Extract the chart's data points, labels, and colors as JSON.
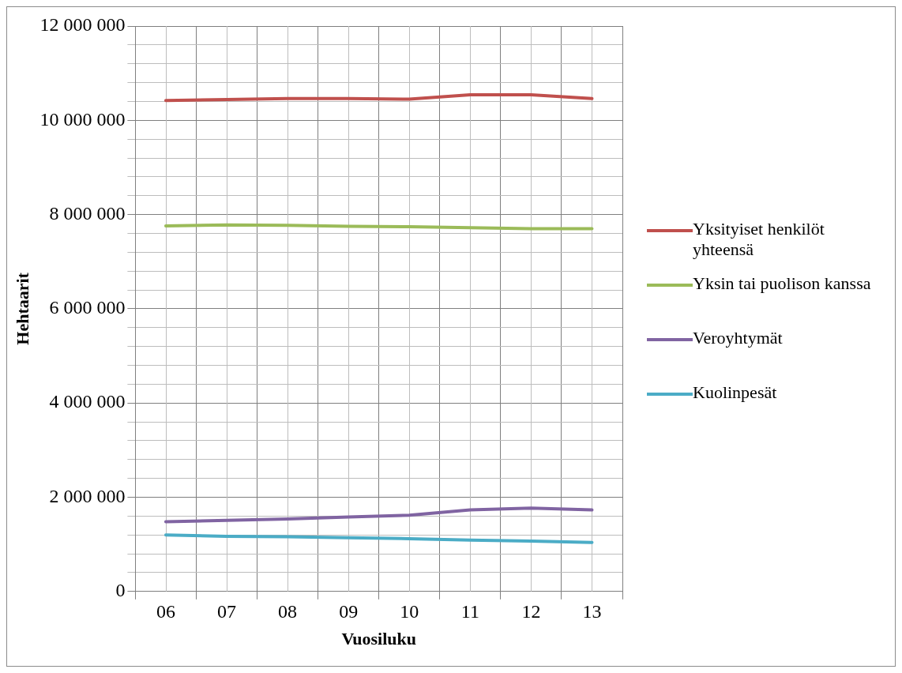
{
  "chart_data": {
    "type": "line",
    "xlabel": "Vuosiluku",
    "ylabel": "Hehtaarit",
    "categories": [
      "06",
      "07",
      "08",
      "09",
      "10",
      "11",
      "12",
      "13"
    ],
    "series": [
      {
        "name": "Yksityiset henkilöt yhteensä",
        "color": "#c0504d",
        "values": [
          10420000,
          10440000,
          10460000,
          10460000,
          10450000,
          10540000,
          10540000,
          10460000
        ]
      },
      {
        "name": "Yksin tai puolison kanssa",
        "color": "#9bbb59",
        "values": [
          7760000,
          7780000,
          7770000,
          7750000,
          7740000,
          7720000,
          7700000,
          7700000
        ]
      },
      {
        "name": "Veroyhtymät",
        "color": "#8064a2",
        "values": [
          1480000,
          1510000,
          1540000,
          1580000,
          1620000,
          1730000,
          1770000,
          1730000
        ]
      },
      {
        "name": "Kuolinpesät",
        "color": "#4bacc6",
        "values": [
          1200000,
          1170000,
          1160000,
          1140000,
          1120000,
          1090000,
          1070000,
          1040000
        ]
      }
    ],
    "ylim": [
      0,
      12000000
    ],
    "yticks": [
      0,
      {
        "value": 400000,
        "label": null
      },
      {
        "value": 800000,
        "label": null
      },
      {
        "value": 1200000,
        "label": null
      },
      {
        "value": 1600000,
        "label": null
      },
      {
        "value": 2000000,
        "label": "2 000 000"
      },
      {
        "value": 2400000,
        "label": null
      },
      {
        "value": 2800000,
        "label": null
      },
      {
        "value": 3200000,
        "label": null
      },
      {
        "value": 3600000,
        "label": null
      },
      {
        "value": 4000000,
        "label": "4 000 000"
      },
      {
        "value": 4400000,
        "label": null
      },
      {
        "value": 4800000,
        "label": null
      },
      {
        "value": 5200000,
        "label": null
      },
      {
        "value": 5600000,
        "label": null
      },
      {
        "value": 6000000,
        "label": "6 000 000"
      },
      {
        "value": 6400000,
        "label": null
      },
      {
        "value": 6800000,
        "label": null
      },
      {
        "value": 7200000,
        "label": null
      },
      {
        "value": 7600000,
        "label": null
      },
      {
        "value": 8000000,
        "label": "8 000 000"
      },
      {
        "value": 8400000,
        "label": null
      },
      {
        "value": 8800000,
        "label": null
      },
      {
        "value": 9200000,
        "label": null
      },
      {
        "value": 9600000,
        "label": null
      },
      {
        "value": 10000000,
        "label": "10 000 000"
      },
      {
        "value": 10400000,
        "label": null
      },
      {
        "value": 10800000,
        "label": null
      },
      {
        "value": 11200000,
        "label": null
      },
      {
        "value": 11600000,
        "label": null
      },
      {
        "value": 12000000,
        "label": "12 000 000"
      }
    ],
    "grid": true,
    "legend": "right",
    "marker": "none",
    "line_style": "solid"
  }
}
